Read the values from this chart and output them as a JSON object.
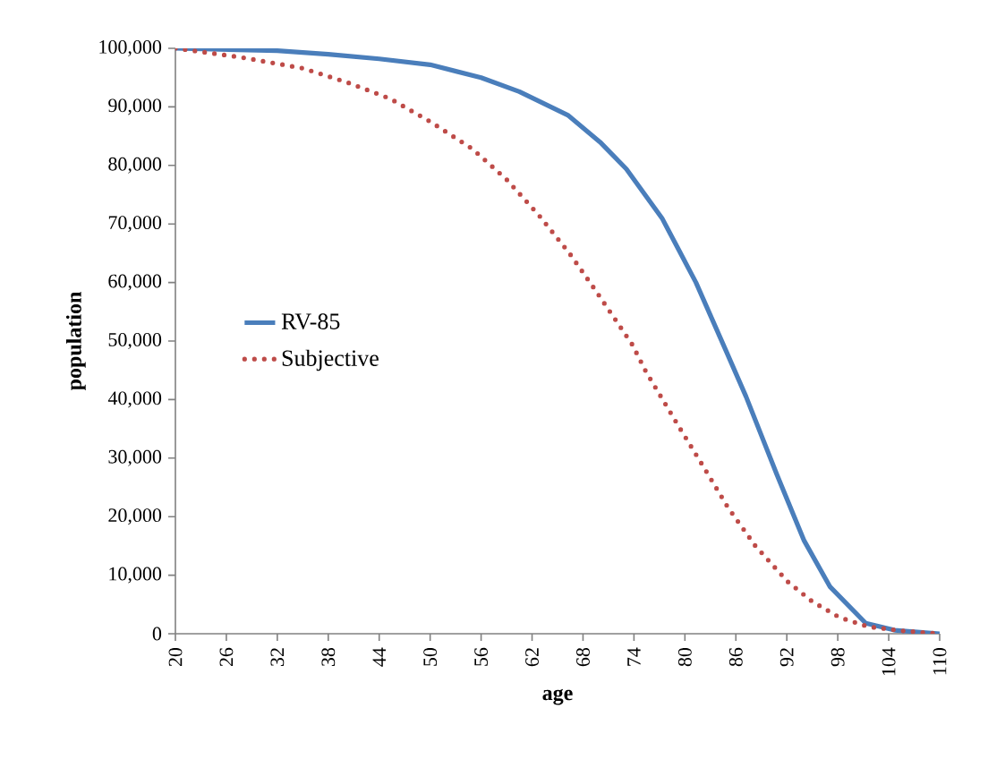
{
  "chart_data": {
    "type": "line",
    "xlabel": "age",
    "ylabel": "population",
    "xlim": [
      20,
      110
    ],
    "xticks": [
      20,
      26,
      32,
      38,
      44,
      50,
      56,
      62,
      68,
      74,
      80,
      86,
      92,
      98,
      104,
      110
    ],
    "ylim": [
      0,
      100000
    ],
    "yticks": [
      {
        "value": 0,
        "label": "0"
      },
      {
        "value": 10000,
        "label": "10,000"
      },
      {
        "value": 20000,
        "label": "20,000"
      },
      {
        "value": 30000,
        "label": "30,000"
      },
      {
        "value": 40000,
        "label": "40,000"
      },
      {
        "value": 50000,
        "label": "50,000"
      },
      {
        "value": 60000,
        "label": "60,000"
      },
      {
        "value": 70000,
        "label": "70,000"
      },
      {
        "value": 80000,
        "label": "80,000"
      },
      {
        "value": 90000,
        "label": "90,000"
      },
      {
        "value": 100000,
        "label": "100,000"
      }
    ],
    "legend": "left",
    "grid": false,
    "marker": "none",
    "series": [
      {
        "name": "RV-85",
        "color": "#4a7ebb",
        "line_style": "solid",
        "x": [
          20,
          32,
          38,
          44,
          50,
          56,
          60.5,
          66.2,
          70,
          73.1,
          77.3,
          81.3,
          84.7,
          87.2,
          90.8,
          94,
          97.1,
          101.3,
          104.7,
          110
        ],
        "values": [
          100000,
          99600,
          99000,
          98200,
          97200,
          95000,
          92600,
          88600,
          84000,
          79400,
          71000,
          60000,
          48800,
          40500,
          27300,
          16000,
          8000,
          1800,
          600,
          0
        ]
      },
      {
        "name": "Subjective",
        "color": "#be4b48",
        "line_style": "dotted",
        "x": [
          20,
          27.6,
          35,
          40.2,
          45.3,
          50.1,
          55,
          59,
          62.8,
          66.4,
          69.5,
          73.8,
          75.4,
          79.2,
          82.2,
          85.1,
          88.3,
          92.1,
          95,
          98.2,
          101.6,
          105.6,
          110
        ],
        "values": [
          100000,
          98500,
          96600,
          94200,
          91400,
          87400,
          82800,
          77600,
          71500,
          65000,
          58600,
          49400,
          44800,
          35600,
          28500,
          21500,
          15000,
          8900,
          5500,
          2800,
          1200,
          500,
          0
        ]
      }
    ]
  }
}
